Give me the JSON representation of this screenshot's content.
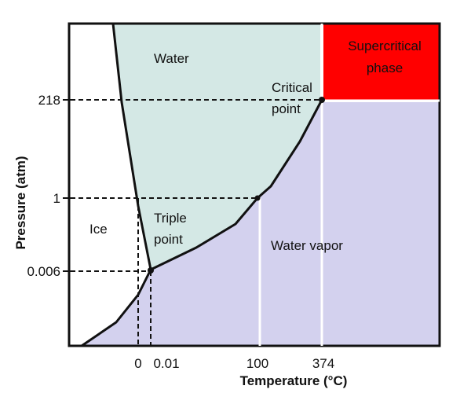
{
  "axes": {
    "y_title": "Pressure (atm)",
    "x_title": "Temperature (°C)",
    "y_ticks": [
      "218",
      "1",
      "0.006"
    ],
    "x_ticks": [
      "0",
      "0.01",
      "100",
      "374"
    ]
  },
  "regions": {
    "ice": "Ice",
    "water": "Water",
    "water_vapor": "Water vapor",
    "supercritical_line1": "Supercritical",
    "supercritical_line2": "phase"
  },
  "points": {
    "critical_line1": "Critical",
    "critical_line2": "point",
    "triple_line1": "Triple",
    "triple_line2": "point"
  },
  "colors": {
    "water": "#d4e8e5",
    "vapor": "#d3d1ee",
    "supercritical": "#ff0000",
    "background": "#ffffff",
    "lines": "#111111"
  }
}
